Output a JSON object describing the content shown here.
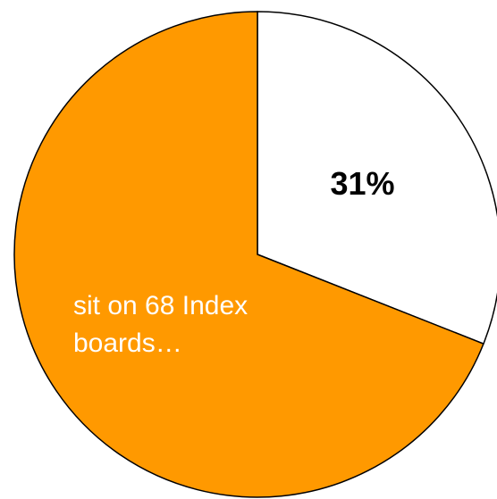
{
  "chart_data": {
    "type": "pie",
    "values": [
      31,
      69
    ],
    "value_labels": [
      "31%",
      null
    ],
    "colors": [
      "#ffffff",
      "#ff9900"
    ],
    "annotation": "sit on 68 Index boards…"
  }
}
